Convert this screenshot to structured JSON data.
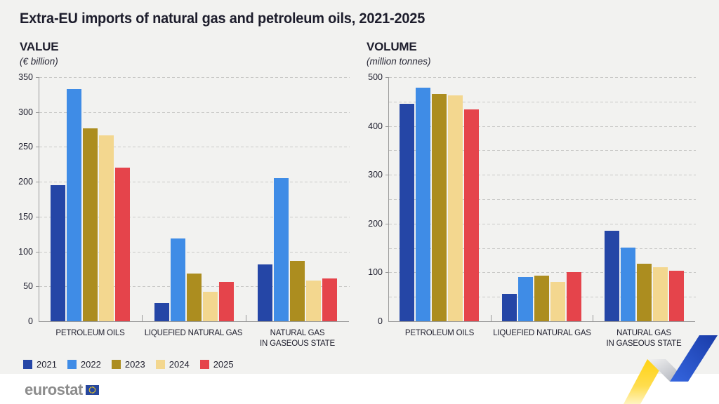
{
  "title": "Extra-EU imports of natural gas and petroleum oils, 2021-2025",
  "footer": {
    "logo_text": "eurostat"
  },
  "colors": {
    "background_panel": "#F2F2F0",
    "text_dark": "#1D1D2C",
    "axis_gray": "#999999",
    "year_2021": "#2546A6",
    "year_2022": "#3F8CE6",
    "year_2023": "#AC8D1F",
    "year_2024": "#F3D78F",
    "year_2025": "#E5444B",
    "ribbon_yellow": "#FFD213",
    "ribbon_blue": "#2150C4",
    "eu_flag_blue": "#27479E",
    "eu_flag_stars": "#FFD617"
  },
  "chart_data": [
    {
      "type": "bar",
      "title": "VALUE",
      "subtitle": "(€ billion)",
      "categories": [
        "PETROLEUM OILS",
        "LIQUEFIED NATURAL GAS",
        "NATURAL GAS\nIN GASEOUS STATE"
      ],
      "series": [
        {
          "name": "2021",
          "color": "#2546A6",
          "values": [
            195,
            26,
            81
          ]
        },
        {
          "name": "2022",
          "color": "#3F8CE6",
          "values": [
            333,
            119,
            205
          ]
        },
        {
          "name": "2023",
          "color": "#AC8D1F",
          "values": [
            277,
            68,
            86
          ]
        },
        {
          "name": "2024",
          "color": "#F3D78F",
          "values": [
            267,
            42,
            58
          ]
        },
        {
          "name": "2025",
          "color": "#E5444B",
          "values": [
            220,
            56,
            61
          ]
        }
      ],
      "ylim": [
        0,
        350
      ],
      "ytick_step": 50,
      "ylabel_step": 50,
      "grid": "dashed-horizontal",
      "legend_position": "bottom-left"
    },
    {
      "type": "bar",
      "title": "VOLUME",
      "subtitle": "(million tonnes)",
      "categories": [
        "PETROLEUM OILS",
        "LIQUEFIED NATURAL GAS",
        "NATURAL GAS\nIN GASEOUS STATE"
      ],
      "series": [
        {
          "name": "2021",
          "color": "#2546A6",
          "values": [
            445,
            56,
            186
          ]
        },
        {
          "name": "2022",
          "color": "#3F8CE6",
          "values": [
            479,
            90,
            151
          ]
        },
        {
          "name": "2023",
          "color": "#AC8D1F",
          "values": [
            466,
            94,
            118
          ]
        },
        {
          "name": "2024",
          "color": "#F3D78F",
          "values": [
            462,
            80,
            111
          ]
        },
        {
          "name": "2025",
          "color": "#E5444B",
          "values": [
            434,
            100,
            104
          ]
        }
      ],
      "ylim": [
        0,
        500
      ],
      "ytick_step": 50,
      "ylabel_step": 100,
      "grid": "dashed-horizontal",
      "legend_position": "bottom-left"
    }
  ]
}
